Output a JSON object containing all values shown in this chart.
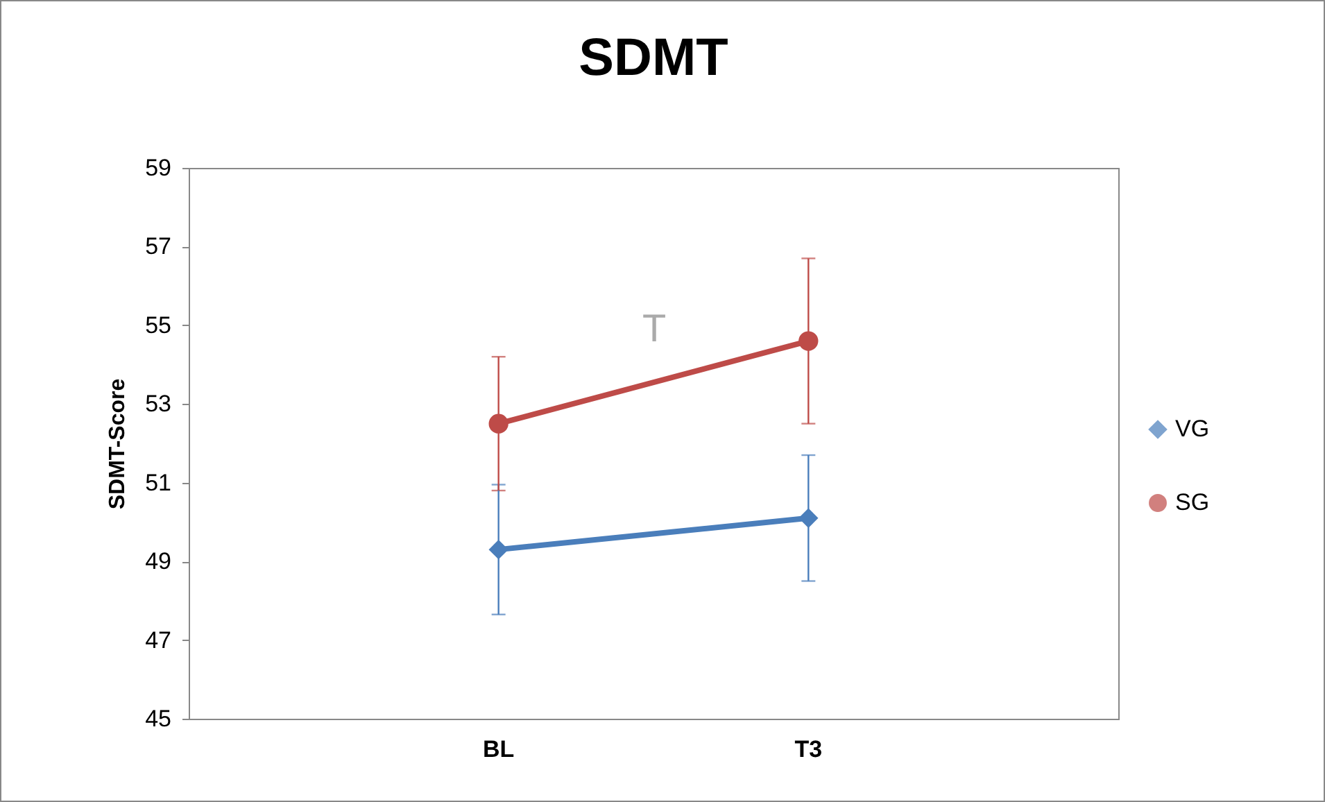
{
  "chart_data": {
    "type": "line",
    "title": "SDMT",
    "ylabel": "SDMT-Score",
    "categories": [
      "BL",
      "T3"
    ],
    "series": [
      {
        "name": "VG",
        "color": "#4a7ebb",
        "marker": "diamond",
        "values": [
          49.3,
          50.1
        ],
        "errors": [
          1.65,
          1.6
        ]
      },
      {
        "name": "SG",
        "color": "#be4b48",
        "marker": "circle",
        "values": [
          52.5,
          54.6
        ],
        "errors": [
          1.7,
          2.1
        ]
      }
    ],
    "ylim": [
      45,
      59
    ],
    "yticks": [
      45,
      47,
      49,
      51,
      53,
      55,
      57,
      59
    ],
    "grid": false,
    "legend": "right",
    "annotations": [
      "T"
    ]
  }
}
